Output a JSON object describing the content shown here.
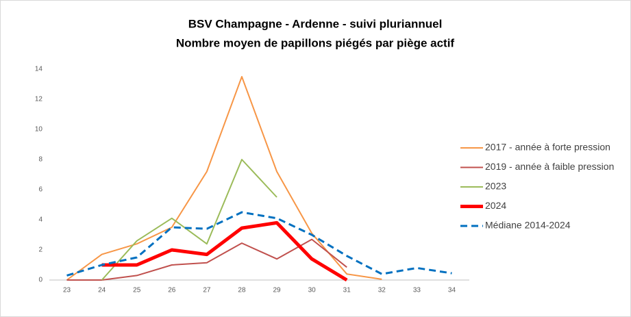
{
  "chart_data": {
    "type": "line",
    "title": "BSV Champagne - Ardenne - suivi pluriannuel",
    "subtitle": "Nombre moyen de papillons piégés par piège actif",
    "categories": [
      "23",
      "24",
      "25",
      "26",
      "27",
      "28",
      "29",
      "30",
      "31",
      "32",
      "33",
      "34"
    ],
    "ylim": [
      0,
      14
    ],
    "yticks": [
      0,
      2,
      4,
      6,
      8,
      10,
      12,
      14
    ],
    "grid": false,
    "legend": "right",
    "series": [
      {
        "name": "2017 - année à forte pression",
        "color": "#f79646",
        "width": 2,
        "dashed": false,
        "values": [
          0,
          1.7,
          2.4,
          3.5,
          7.2,
          13.5,
          7.2,
          3.1,
          0.4,
          0.05,
          null,
          null
        ]
      },
      {
        "name": "2019 - année à faible pression",
        "color": "#c0504d",
        "width": 2,
        "dashed": false,
        "values": [
          0,
          0,
          0.3,
          1.0,
          1.15,
          2.45,
          1.4,
          2.7,
          0.85,
          null,
          null,
          null
        ]
      },
      {
        "name": "2023",
        "color": "#9bbb59",
        "width": 2,
        "dashed": false,
        "values": [
          null,
          0,
          2.6,
          4.1,
          2.4,
          8.0,
          5.5,
          null,
          null,
          null,
          null,
          null
        ]
      },
      {
        "name": "2024",
        "color": "#ff0000",
        "width": 5,
        "dashed": false,
        "values": [
          null,
          1.0,
          1.0,
          2.0,
          1.7,
          3.45,
          3.8,
          1.4,
          0,
          null,
          null,
          null
        ]
      },
      {
        "name": "Médiane 2014-2024",
        "color": "#0070c0",
        "width": 3,
        "dashed": true,
        "values": [
          0.3,
          1.0,
          1.5,
          3.5,
          3.4,
          4.5,
          4.1,
          3.0,
          1.6,
          0.4,
          0.8,
          0.45
        ]
      }
    ]
  }
}
